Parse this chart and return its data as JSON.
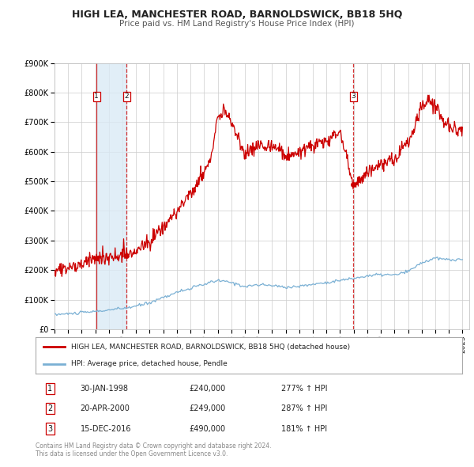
{
  "title": "HIGH LEA, MANCHESTER ROAD, BARNOLDSWICK, BB18 5HQ",
  "subtitle": "Price paid vs. HM Land Registry's House Price Index (HPI)",
  "background_color": "#ffffff",
  "plot_bg_color": "#ffffff",
  "grid_color": "#cccccc",
  "xmin": 1995.0,
  "xmax": 2025.5,
  "ymin": 0,
  "ymax": 900000,
  "yticks": [
    0,
    100000,
    200000,
    300000,
    400000,
    500000,
    600000,
    700000,
    800000,
    900000
  ],
  "ytick_labels": [
    "£0",
    "£100K",
    "£200K",
    "£300K",
    "£400K",
    "£500K",
    "£600K",
    "£700K",
    "£800K",
    "£900K"
  ],
  "xtick_years": [
    1995,
    1996,
    1997,
    1998,
    1999,
    2000,
    2001,
    2002,
    2003,
    2004,
    2005,
    2006,
    2007,
    2008,
    2009,
    2010,
    2011,
    2012,
    2013,
    2014,
    2015,
    2016,
    2017,
    2018,
    2019,
    2020,
    2021,
    2022,
    2023,
    2024,
    2025
  ],
  "house_color": "#cc0000",
  "hpi_color": "#7ab0d4",
  "sale1_x": 1998.08,
  "sale1_y": 240000,
  "sale1_label": "1",
  "sale1_date": "30-JAN-1998",
  "sale1_price": "£240,000",
  "sale1_pct": "277% ↑ HPI",
  "sale2_x": 2000.3,
  "sale2_y": 249000,
  "sale2_label": "2",
  "sale2_date": "20-APR-2000",
  "sale2_price": "£249,000",
  "sale2_pct": "287% ↑ HPI",
  "sale3_x": 2016.96,
  "sale3_y": 490000,
  "sale3_label": "3",
  "sale3_date": "15-DEC-2016",
  "sale3_price": "£490,000",
  "sale3_pct": "181% ↑ HPI",
  "legend_house_label": "HIGH LEA, MANCHESTER ROAD, BARNOLDSWICK, BB18 5HQ (detached house)",
  "legend_hpi_label": "HPI: Average price, detached house, Pendle",
  "footer_line1": "Contains HM Land Registry data © Crown copyright and database right 2024.",
  "footer_line2": "This data is licensed under the Open Government Licence v3.0.",
  "shade_x1": 1998.08,
  "shade_x2": 2000.3
}
